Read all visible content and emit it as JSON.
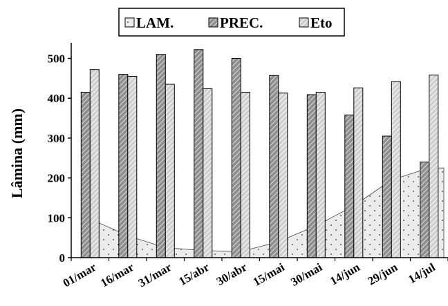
{
  "chart_data": {
    "type": "bar",
    "categories": [
      "01/mar",
      "16/mar",
      "31/mar",
      "15/abr",
      "30/abr",
      "15/mai",
      "30/mai",
      "14/jun",
      "29/jun",
      "14/jul"
    ],
    "series": [
      {
        "name": "LAM.",
        "kind": "area",
        "values": [
          105,
          55,
          25,
          18,
          15,
          40,
          80,
          130,
          195,
          225
        ],
        "color": "#e8e8e8"
      },
      {
        "name": "PREC.",
        "kind": "bar",
        "values": [
          415,
          460,
          510,
          522,
          500,
          457,
          409,
          358,
          305,
          240
        ],
        "color": "#9a9a9a"
      },
      {
        "name": "Eto",
        "kind": "bar",
        "values": [
          472,
          455,
          435,
          424,
          415,
          413,
          415,
          426,
          442,
          458
        ],
        "color": "#d9d9d9"
      }
    ],
    "xlabel": "",
    "ylabel": "Lâmina (mm)",
    "yticks": [
      0,
      100,
      200,
      300,
      400,
      500
    ],
    "ylim": [
      0,
      540
    ],
    "grid": false,
    "legend": "top-center"
  }
}
